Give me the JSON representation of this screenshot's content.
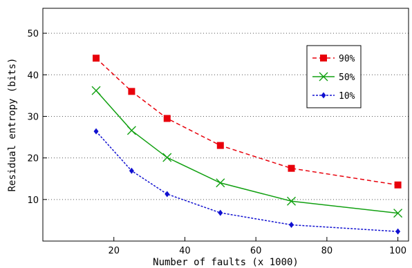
{
  "chart_data": {
    "type": "line",
    "title": "",
    "xlabel": "Number of faults (x 1000)",
    "ylabel": "Residual entropy (bits)",
    "xlim": [
      0,
      103
    ],
    "ylim": [
      0,
      56
    ],
    "xticks": [
      20,
      40,
      60,
      80,
      100
    ],
    "yticks": [
      10,
      20,
      30,
      40,
      50
    ],
    "grid": "horizontal dotted",
    "legend_position": "top-right",
    "x": [
      15,
      25,
      35,
      50,
      70,
      100
    ],
    "series": [
      {
        "name": "90%",
        "color": "#e8000b",
        "marker": "square",
        "dash": "6,4",
        "values": [
          44.0,
          36.0,
          29.5,
          23.0,
          17.5,
          13.5
        ]
      },
      {
        "name": "50%",
        "color": "#11a011",
        "marker": "x",
        "dash": "",
        "values": [
          36.2,
          26.6,
          20.1,
          14.0,
          9.6,
          6.7
        ]
      },
      {
        "name": "10%",
        "color": "#1010d0",
        "marker": "diamond",
        "dash": "3,2",
        "values": [
          26.4,
          16.9,
          11.3,
          6.8,
          3.9,
          2.3
        ]
      }
    ]
  }
}
